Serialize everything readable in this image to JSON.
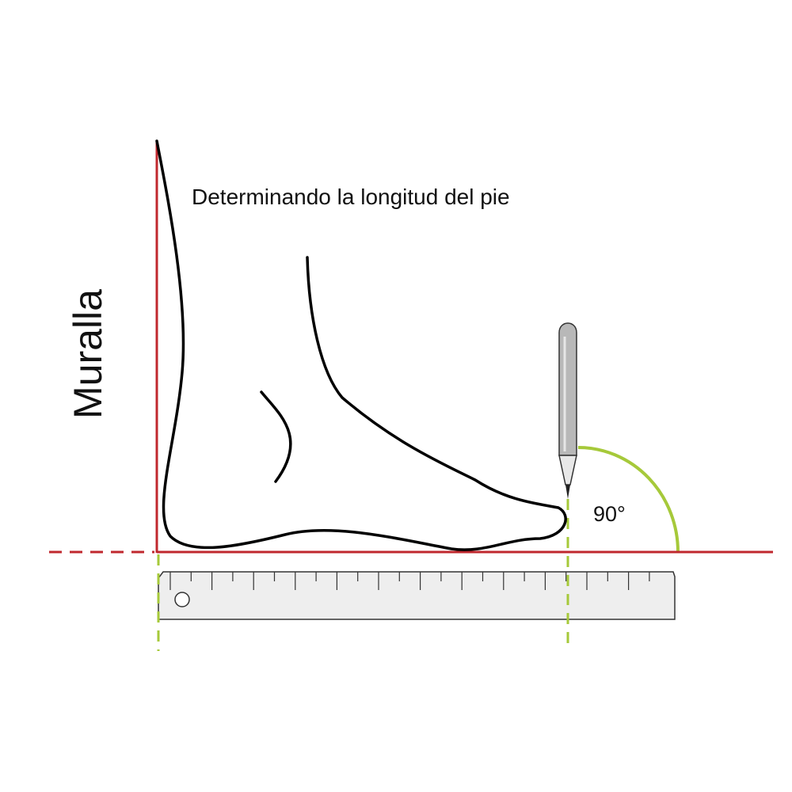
{
  "title": "Determinando la longitud del pie",
  "wall_label": "Muralla",
  "angle_label": "90°"
}
